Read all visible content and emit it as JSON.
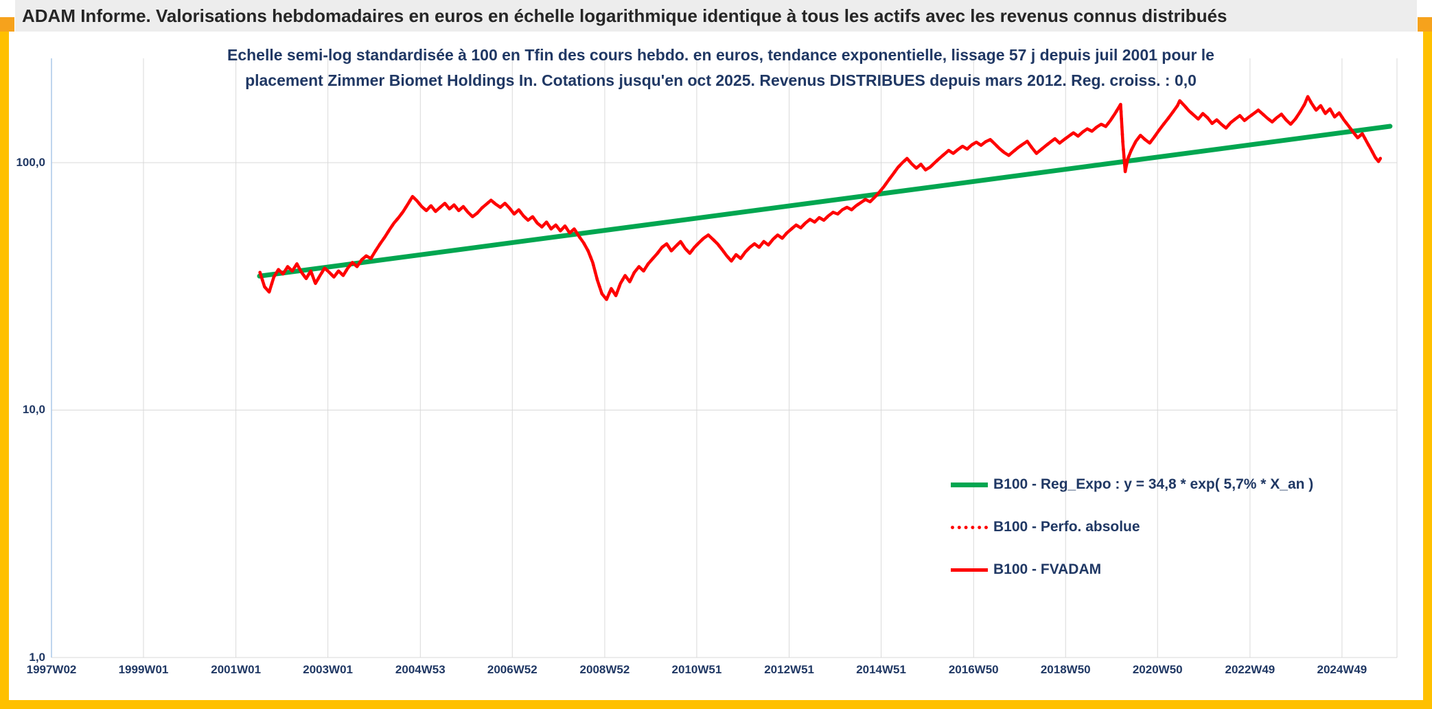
{
  "header": {
    "title": "ADAM Informe. Valorisations hebdomadaires en euros en échelle logarithmique identique à tous les actifs avec les revenus connus distribués"
  },
  "chart": {
    "title_line1": "Echelle semi-log standardisée à 100 en Tfin des cours hebdo. en euros, tendance exponentielle, lissage 57 j depuis juil 2001 pour le",
    "title_line2": "placement Zimmer Biomet Holdings In. Cotations jusqu'en oct 2025. Revenus DISTRIBUES depuis mars 2012. Reg. croiss. : 0,0"
  },
  "theme": {
    "gold": "#FFC000",
    "orange": "#F6A21C",
    "header_bg": "#EDEDED",
    "header_text": "#262626",
    "navy": "#203864",
    "grid": "#D9D9D9",
    "axis_blue": "#A9C7E9",
    "green": "#00A650",
    "red": "#FE0000"
  },
  "chart_data": {
    "type": "line",
    "y_scale": "log",
    "grid": true,
    "legend_position": "inside-lower-right",
    "x_axis": {
      "range": [
        1997.04,
        2026.15
      ],
      "ticks": [
        {
          "label": "1997W02",
          "x": 1997.04
        },
        {
          "label": "1999W01",
          "x": 1999.03
        },
        {
          "label": "2001W01",
          "x": 2001.03
        },
        {
          "label": "2003W01",
          "x": 2003.02
        },
        {
          "label": "2004W53",
          "x": 2005.02
        },
        {
          "label": "2006W52",
          "x": 2007.01
        },
        {
          "label": "2008W52",
          "x": 2009.01
        },
        {
          "label": "2010W51",
          "x": 2011.0
        },
        {
          "label": "2012W51",
          "x": 2013.0
        },
        {
          "label": "2014W51",
          "x": 2014.99
        },
        {
          "label": "2016W50",
          "x": 2016.99
        },
        {
          "label": "2018W50",
          "x": 2018.98
        },
        {
          "label": "2020W50",
          "x": 2020.97
        },
        {
          "label": "2022W49",
          "x": 2022.97
        },
        {
          "label": "2024W49",
          "x": 2024.96
        }
      ]
    },
    "y_axis": {
      "range": [
        1,
        264
      ],
      "ticks": [
        {
          "label": "1,0",
          "v": 1
        },
        {
          "label": "10,0",
          "v": 10
        },
        {
          "label": "100,0",
          "v": 100
        }
      ]
    },
    "regression": {
      "formula": "y = 34,8 * exp( 5,7% * X_an )",
      "a": 34.8,
      "rate_pct": 5.7,
      "reg_croiss": "0,0"
    },
    "series": [
      {
        "name": "B100 - Reg_Expo : y = 34,8 * exp( 5,7% * X_an )",
        "color": "#00A650",
        "width": 7,
        "style": "solid",
        "points": [
          [
            2001.54,
            34.8
          ],
          [
            2026.0,
            140.3
          ]
        ]
      },
      {
        "name": "B100 - Perfo. absolue",
        "color": "#FE0000",
        "width": 4.5,
        "style": "dotted",
        "dash": "2 9",
        "same_as": "B100 - FVADAM"
      },
      {
        "name": "B100 - FVADAM",
        "color": "#FE0000",
        "width": 4.5,
        "style": "solid",
        "points": [
          [
            2001.55,
            36
          ],
          [
            2001.65,
            31.5
          ],
          [
            2001.75,
            30
          ],
          [
            2001.85,
            34.5
          ],
          [
            2001.95,
            37
          ],
          [
            2002.05,
            35.5
          ],
          [
            2002.15,
            38
          ],
          [
            2002.25,
            36.5
          ],
          [
            2002.35,
            39
          ],
          [
            2002.45,
            36
          ],
          [
            2002.55,
            34
          ],
          [
            2002.65,
            36.5
          ],
          [
            2002.75,
            32.5
          ],
          [
            2002.85,
            35
          ],
          [
            2002.95,
            37.5
          ],
          [
            2003.05,
            36
          ],
          [
            2003.15,
            34.5
          ],
          [
            2003.25,
            36.5
          ],
          [
            2003.35,
            35
          ],
          [
            2003.45,
            37.5
          ],
          [
            2003.55,
            39.5
          ],
          [
            2003.65,
            38
          ],
          [
            2003.75,
            40.5
          ],
          [
            2003.85,
            42
          ],
          [
            2003.95,
            41
          ],
          [
            2004.05,
            44
          ],
          [
            2004.15,
            47
          ],
          [
            2004.25,
            50
          ],
          [
            2004.35,
            53.5
          ],
          [
            2004.45,
            57
          ],
          [
            2004.55,
            60
          ],
          [
            2004.65,
            63.5
          ],
          [
            2004.75,
            68
          ],
          [
            2004.85,
            73
          ],
          [
            2004.95,
            70
          ],
          [
            2005.05,
            66.5
          ],
          [
            2005.15,
            64
          ],
          [
            2005.25,
            67
          ],
          [
            2005.35,
            63.5
          ],
          [
            2005.45,
            66
          ],
          [
            2005.55,
            68.5
          ],
          [
            2005.65,
            65
          ],
          [
            2005.75,
            67.5
          ],
          [
            2005.85,
            64
          ],
          [
            2005.95,
            66.5
          ],
          [
            2006.05,
            63
          ],
          [
            2006.15,
            60.5
          ],
          [
            2006.25,
            62.5
          ],
          [
            2006.35,
            65.5
          ],
          [
            2006.45,
            68
          ],
          [
            2006.55,
            70.5
          ],
          [
            2006.65,
            68
          ],
          [
            2006.75,
            66
          ],
          [
            2006.85,
            68.5
          ],
          [
            2006.95,
            65.5
          ],
          [
            2007.05,
            62
          ],
          [
            2007.15,
            64.5
          ],
          [
            2007.25,
            61
          ],
          [
            2007.35,
            58.5
          ],
          [
            2007.45,
            60.5
          ],
          [
            2007.55,
            57
          ],
          [
            2007.65,
            55
          ],
          [
            2007.75,
            57.5
          ],
          [
            2007.85,
            54
          ],
          [
            2007.95,
            56
          ],
          [
            2008.05,
            53
          ],
          [
            2008.15,
            55.5
          ],
          [
            2008.25,
            52
          ],
          [
            2008.35,
            54
          ],
          [
            2008.45,
            50.5
          ],
          [
            2008.55,
            47.5
          ],
          [
            2008.65,
            44
          ],
          [
            2008.75,
            39.5
          ],
          [
            2008.85,
            33.5
          ],
          [
            2008.95,
            29.5
          ],
          [
            2009.05,
            28
          ],
          [
            2009.15,
            31
          ],
          [
            2009.25,
            29
          ],
          [
            2009.35,
            32.5
          ],
          [
            2009.45,
            35
          ],
          [
            2009.55,
            33
          ],
          [
            2009.65,
            36
          ],
          [
            2009.75,
            38
          ],
          [
            2009.85,
            36.5
          ],
          [
            2009.95,
            39
          ],
          [
            2010.05,
            41
          ],
          [
            2010.15,
            43
          ],
          [
            2010.25,
            45.5
          ],
          [
            2010.35,
            47
          ],
          [
            2010.45,
            44
          ],
          [
            2010.55,
            46
          ],
          [
            2010.65,
            48
          ],
          [
            2010.75,
            45
          ],
          [
            2010.85,
            43
          ],
          [
            2010.95,
            45.5
          ],
          [
            2011.05,
            47.5
          ],
          [
            2011.15,
            49.5
          ],
          [
            2011.25,
            51
          ],
          [
            2011.35,
            49
          ],
          [
            2011.45,
            47
          ],
          [
            2011.55,
            44.5
          ],
          [
            2011.65,
            42
          ],
          [
            2011.75,
            40
          ],
          [
            2011.85,
            42.5
          ],
          [
            2011.95,
            41
          ],
          [
            2012.05,
            43.5
          ],
          [
            2012.15,
            45.5
          ],
          [
            2012.25,
            47
          ],
          [
            2012.35,
            45.5
          ],
          [
            2012.45,
            48
          ],
          [
            2012.55,
            46.5
          ],
          [
            2012.65,
            49
          ],
          [
            2012.75,
            51
          ],
          [
            2012.85,
            49.5
          ],
          [
            2012.95,
            52
          ],
          [
            2013.05,
            54
          ],
          [
            2013.15,
            56
          ],
          [
            2013.25,
            54.5
          ],
          [
            2013.35,
            57
          ],
          [
            2013.45,
            59
          ],
          [
            2013.55,
            57.5
          ],
          [
            2013.65,
            60
          ],
          [
            2013.75,
            58.5
          ],
          [
            2013.85,
            61
          ],
          [
            2013.95,
            63
          ],
          [
            2014.05,
            62
          ],
          [
            2014.15,
            64.5
          ],
          [
            2014.25,
            66
          ],
          [
            2014.35,
            64.5
          ],
          [
            2014.45,
            67
          ],
          [
            2014.55,
            69
          ],
          [
            2014.65,
            71
          ],
          [
            2014.75,
            69.5
          ],
          [
            2014.85,
            72.5
          ],
          [
            2014.95,
            76
          ],
          [
            2015.05,
            80
          ],
          [
            2015.15,
            85
          ],
          [
            2015.25,
            90
          ],
          [
            2015.35,
            95.5
          ],
          [
            2015.45,
            100
          ],
          [
            2015.55,
            104
          ],
          [
            2015.65,
            99
          ],
          [
            2015.75,
            95
          ],
          [
            2015.85,
            98.5
          ],
          [
            2015.95,
            93.5
          ],
          [
            2016.05,
            96
          ],
          [
            2016.15,
            100
          ],
          [
            2016.25,
            104
          ],
          [
            2016.35,
            108
          ],
          [
            2016.45,
            112
          ],
          [
            2016.55,
            109
          ],
          [
            2016.65,
            113
          ],
          [
            2016.75,
            116.5
          ],
          [
            2016.85,
            113.5
          ],
          [
            2016.95,
            118
          ],
          [
            2017.05,
            121
          ],
          [
            2017.15,
            117.5
          ],
          [
            2017.25,
            121.5
          ],
          [
            2017.35,
            124
          ],
          [
            2017.45,
            119
          ],
          [
            2017.55,
            114
          ],
          [
            2017.65,
            110
          ],
          [
            2017.75,
            107
          ],
          [
            2017.85,
            111
          ],
          [
            2017.95,
            115
          ],
          [
            2018.05,
            118.5
          ],
          [
            2018.15,
            122
          ],
          [
            2018.25,
            115
          ],
          [
            2018.35,
            109
          ],
          [
            2018.45,
            113
          ],
          [
            2018.55,
            117
          ],
          [
            2018.65,
            121
          ],
          [
            2018.75,
            125
          ],
          [
            2018.85,
            120
          ],
          [
            2018.95,
            124
          ],
          [
            2019.05,
            128
          ],
          [
            2019.15,
            132
          ],
          [
            2019.25,
            128
          ],
          [
            2019.35,
            133
          ],
          [
            2019.45,
            137
          ],
          [
            2019.55,
            134
          ],
          [
            2019.65,
            139
          ],
          [
            2019.75,
            143
          ],
          [
            2019.85,
            140
          ],
          [
            2019.95,
            148
          ],
          [
            2020.05,
            158
          ],
          [
            2020.12,
            166
          ],
          [
            2020.17,
            172
          ],
          [
            2020.22,
            120
          ],
          [
            2020.27,
            92
          ],
          [
            2020.32,
            103
          ],
          [
            2020.4,
            112
          ],
          [
            2020.5,
            122
          ],
          [
            2020.6,
            129
          ],
          [
            2020.7,
            124
          ],
          [
            2020.8,
            120
          ],
          [
            2020.9,
            127
          ],
          [
            2021.0,
            135
          ],
          [
            2021.1,
            143
          ],
          [
            2021.2,
            151
          ],
          [
            2021.3,
            160
          ],
          [
            2021.4,
            170
          ],
          [
            2021.45,
            178
          ],
          [
            2021.55,
            170
          ],
          [
            2021.65,
            162
          ],
          [
            2021.75,
            156
          ],
          [
            2021.85,
            150
          ],
          [
            2021.95,
            158
          ],
          [
            2022.05,
            152
          ],
          [
            2022.15,
            144
          ],
          [
            2022.25,
            149
          ],
          [
            2022.35,
            143
          ],
          [
            2022.45,
            138
          ],
          [
            2022.55,
            145
          ],
          [
            2022.65,
            150
          ],
          [
            2022.75,
            155
          ],
          [
            2022.85,
            148
          ],
          [
            2022.95,
            153
          ],
          [
            2023.05,
            158
          ],
          [
            2023.15,
            163
          ],
          [
            2023.25,
            157
          ],
          [
            2023.35,
            151
          ],
          [
            2023.45,
            146
          ],
          [
            2023.55,
            152
          ],
          [
            2023.65,
            157
          ],
          [
            2023.75,
            149
          ],
          [
            2023.85,
            143
          ],
          [
            2023.95,
            150
          ],
          [
            2024.05,
            160
          ],
          [
            2024.15,
            172
          ],
          [
            2024.22,
            185
          ],
          [
            2024.3,
            174
          ],
          [
            2024.4,
            163
          ],
          [
            2024.5,
            170
          ],
          [
            2024.6,
            158
          ],
          [
            2024.7,
            165
          ],
          [
            2024.8,
            153
          ],
          [
            2024.9,
            159
          ],
          [
            2025.0,
            149
          ],
          [
            2025.1,
            141
          ],
          [
            2025.2,
            133
          ],
          [
            2025.3,
            126
          ],
          [
            2025.4,
            131
          ],
          [
            2025.5,
            121
          ],
          [
            2025.6,
            112
          ],
          [
            2025.68,
            105
          ],
          [
            2025.75,
            101
          ],
          [
            2025.79,
            104
          ]
        ]
      }
    ]
  }
}
